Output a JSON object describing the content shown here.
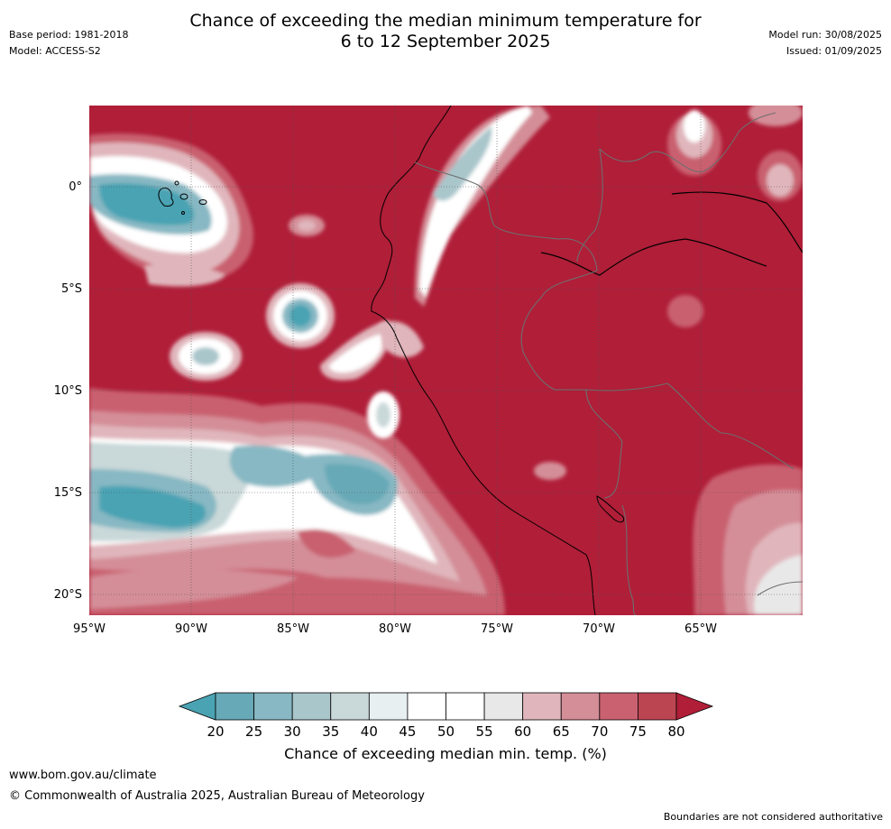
{
  "title_line1": "Chance of exceeding the median minimum temperature for",
  "title_line2": "6 to 12 September 2025",
  "meta_left": {
    "base_period": "Base period: 1981-2018",
    "model": "Model: ACCESS-S2"
  },
  "meta_right": {
    "model_run": "Model run: 30/08/2025",
    "issued": "Issued: 01/09/2025"
  },
  "map": {
    "lon_ticks": [
      "95°W",
      "90°W",
      "85°W",
      "80°W",
      "75°W",
      "70°W",
      "65°W"
    ],
    "lat_ticks": [
      "0°",
      "5°S",
      "10°S",
      "15°S",
      "20°S"
    ]
  },
  "colorbar": {
    "ticks": [
      "20",
      "25",
      "30",
      "35",
      "40",
      "45",
      "50",
      "55",
      "60",
      "65",
      "70",
      "75",
      "80"
    ],
    "colors": [
      "#4aa3b3",
      "#68a9b7",
      "#87b8c3",
      "#a9c6cb",
      "#c9d8d9",
      "#e8eff0",
      "#ffffff",
      "#ffffff",
      "#e8e8e8",
      "#e0b6bc",
      "#d48e98",
      "#c96170",
      "#bc4552",
      "#b01e38"
    ],
    "label": "Chance of exceeding median min. temp. (%)"
  },
  "footer": {
    "url": "www.bom.gov.au/climate",
    "copyright": "© Commonwealth of Australia 2025, Australian Bureau of Meteorology",
    "note": "Boundaries are not considered authoritative"
  }
}
